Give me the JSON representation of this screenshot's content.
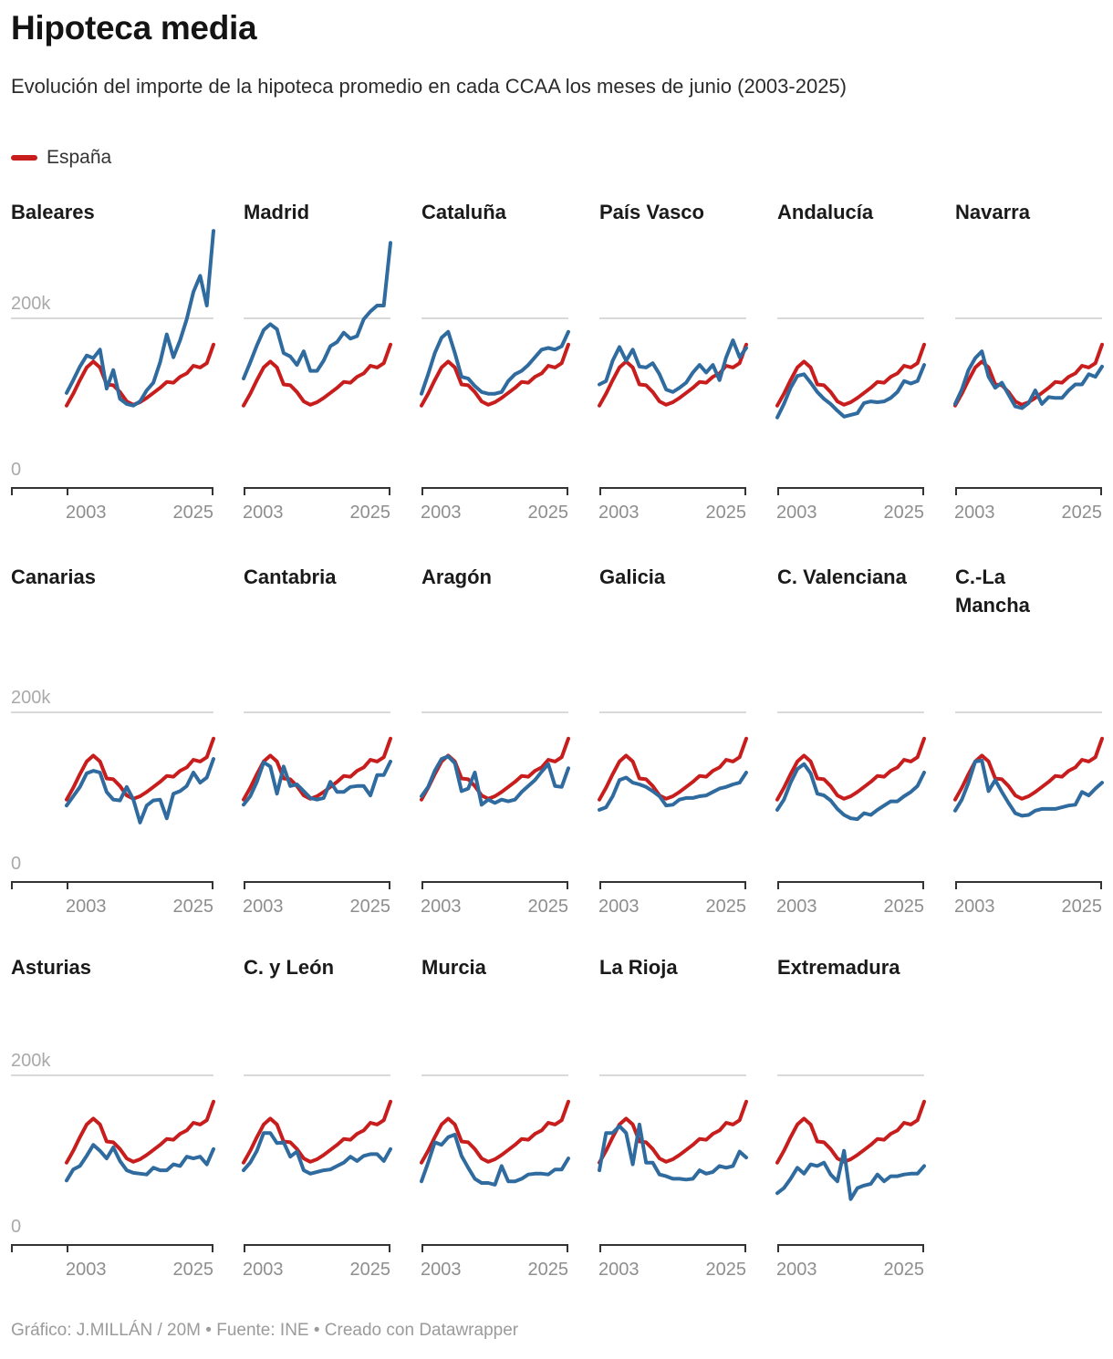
{
  "title": "Hipoteca media",
  "subtitle": "Evolución del importe de la hipoteca promedio en cada CCAA los meses de junio (2003-2025)",
  "legend": {
    "label": "España"
  },
  "footer": "Gráfico: J.MILLÁN / 20M • Fuente: INE • Creado con Datawrapper",
  "colors": {
    "spain_line": "#c71e1d",
    "region_line": "#2f6b9e",
    "gridline": "#d9d9d9",
    "axis": "#333333",
    "tick_label": "#8e8e8e",
    "y_label": "#a9a9a9"
  },
  "axis": {
    "x_ticks": [
      "2003",
      "2025"
    ],
    "y_gridline_label": "200k",
    "y_baseline_label": "0"
  },
  "chart_data": {
    "type": "line",
    "title": "Hipoteca media",
    "subtitle": "Evolución del importe de la hipoteca promedio en cada CCAA los meses de junio (2003-2025)",
    "values_unit": "thousands of euros",
    "ylim": [
      0,
      310
    ],
    "y_gridline_value": 200,
    "grid": "single 200k gridline, dark baseline axis",
    "legend_position": "top-left",
    "x": [
      2003,
      2004,
      2005,
      2006,
      2007,
      2008,
      2009,
      2010,
      2011,
      2012,
      2013,
      2014,
      2015,
      2016,
      2017,
      2018,
      2019,
      2020,
      2021,
      2022,
      2023,
      2024,
      2025
    ],
    "x_tick_labels": [
      "2003",
      "2025"
    ],
    "spain": {
      "name": "España",
      "values": [
        96,
        110,
        126,
        141,
        148,
        141,
        121,
        120,
        112,
        101,
        97,
        100,
        105,
        111,
        117,
        124,
        123,
        130,
        134,
        143,
        141,
        146,
        168
      ]
    },
    "regions": [
      {
        "name": "Baleares",
        "values": [
          111,
          126,
          142,
          155,
          152,
          162,
          116,
          138,
          104,
          98,
          96,
          101,
          114,
          123,
          147,
          180,
          153,
          173,
          198,
          230,
          249,
          214,
          302
        ]
      },
      {
        "name": "Madrid",
        "values": [
          128,
          147,
          167,
          185,
          192,
          186,
          158,
          154,
          144,
          160,
          137,
          137,
          149,
          166,
          171,
          182,
          175,
          178,
          198,
          207,
          214,
          214,
          288
        ]
      },
      {
        "name": "Cataluña",
        "values": [
          110,
          133,
          158,
          176,
          183,
          158,
          130,
          128,
          119,
          112,
          110,
          110,
          112,
          125,
          133,
          137,
          144,
          153,
          162,
          164,
          162,
          166,
          183
        ]
      },
      {
        "name": "País Vasco",
        "values": [
          121,
          125,
          149,
          165,
          149,
          162,
          142,
          141,
          146,
          133,
          115,
          112,
          117,
          123,
          135,
          144,
          135,
          144,
          126,
          153,
          173,
          153,
          164
        ]
      },
      {
        "name": "Andalucía",
        "values": [
          82,
          98,
          117,
          131,
          133,
          123,
          112,
          104,
          98,
          90,
          83,
          85,
          87,
          99,
          101,
          100,
          101,
          105,
          112,
          125,
          122,
          125,
          144
        ]
      },
      {
        "name": "Navarra",
        "values": [
          98,
          115,
          138,
          152,
          160,
          130,
          117,
          123,
          109,
          95,
          93,
          99,
          114,
          98,
          106,
          105,
          105,
          114,
          121,
          121,
          133,
          130,
          142
        ]
      },
      {
        "name": "Canarias",
        "values": [
          89,
          100,
          111,
          127,
          130,
          128,
          105,
          96,
          95,
          111,
          96,
          69,
          89,
          95,
          96,
          74,
          103,
          106,
          112,
          128,
          116,
          122,
          144
        ]
      },
      {
        "name": "Cantabria",
        "values": [
          90,
          100,
          117,
          140,
          135,
          103,
          135,
          112,
          114,
          106,
          98,
          96,
          98,
          117,
          105,
          105,
          111,
          112,
          112,
          101,
          125,
          125,
          141
        ]
      },
      {
        "name": "Aragón",
        "values": [
          100,
          111,
          130,
          144,
          147,
          139,
          106,
          109,
          128,
          90,
          96,
          92,
          96,
          94,
          96,
          105,
          112,
          119,
          129,
          138,
          112,
          111,
          133
        ]
      },
      {
        "name": "Galicia",
        "values": [
          84,
          87,
          100,
          119,
          122,
          116,
          114,
          111,
          106,
          100,
          89,
          90,
          96,
          98,
          98,
          100,
          101,
          105,
          109,
          111,
          114,
          116,
          128
        ]
      },
      {
        "name": "C. Valenciana",
        "values": [
          84,
          96,
          116,
          132,
          138,
          127,
          103,
          101,
          95,
          85,
          78,
          74,
          73,
          80,
          78,
          84,
          89,
          94,
          94,
          100,
          105,
          112,
          128
        ]
      },
      {
        "name": "C.-La Mancha",
        "values": [
          83,
          96,
          116,
          141,
          142,
          106,
          119,
          105,
          92,
          80,
          77,
          78,
          83,
          85,
          85,
          85,
          87,
          89,
          90,
          105,
          101,
          109,
          116
        ]
      },
      {
        "name": "Asturias",
        "values": [
          75,
          88,
          92,
          104,
          117,
          110,
          101,
          114,
          98,
          87,
          84,
          83,
          82,
          90,
          87,
          87,
          94,
          92,
          103,
          101,
          103,
          94,
          112
        ]
      },
      {
        "name": "C. y León",
        "values": [
          87,
          96,
          110,
          131,
          131,
          119,
          120,
          103,
          109,
          87,
          83,
          85,
          87,
          88,
          92,
          96,
          103,
          98,
          104,
          106,
          106,
          98,
          112
        ]
      },
      {
        "name": "Murcia",
        "values": [
          74,
          96,
          120,
          117,
          126,
          129,
          104,
          90,
          77,
          72,
          72,
          70,
          92,
          74,
          74,
          77,
          82,
          83,
          83,
          82,
          88,
          88,
          101
        ]
      },
      {
        "name": "La Rioja",
        "values": [
          87,
          131,
          131,
          139,
          131,
          94,
          141,
          96,
          96,
          82,
          80,
          77,
          77,
          76,
          77,
          87,
          83,
          85,
          92,
          90,
          92,
          109,
          102
        ]
      },
      {
        "name": "Extremadura",
        "values": [
          60,
          66,
          77,
          90,
          83,
          94,
          92,
          96,
          82,
          74,
          110,
          53,
          66,
          69,
          71,
          82,
          74,
          80,
          80,
          82,
          83,
          83,
          92
        ]
      }
    ]
  }
}
